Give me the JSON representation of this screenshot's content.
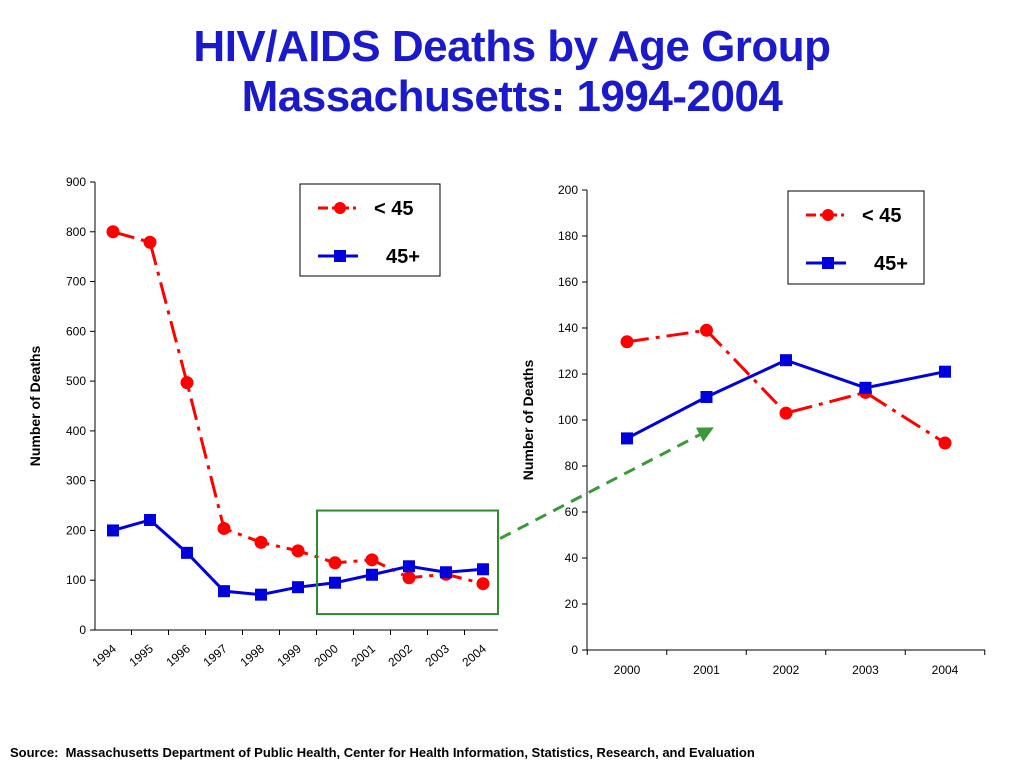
{
  "title": {
    "line1": "HIV/AIDS Deaths by Age Group",
    "line2": "Massachusetts: 1994-2004"
  },
  "source": "Source:  Massachusetts Department of Public Health, Center for Health Information, Statistics, Research, and Evaluation",
  "colors": {
    "under45": "#ff0000",
    "over45": "#0000dd",
    "title": "#1a1acc",
    "highlight_box": "#2e8b2e",
    "arrow": "#3a9a3a"
  },
  "chart_data": [
    {
      "type": "line",
      "title": "",
      "xlabel": "",
      "ylabel": "Number of Deaths",
      "x": [
        "1994",
        "1995",
        "1996",
        "1997",
        "1998",
        "1999",
        "2000",
        "2001",
        "2002",
        "2003",
        "2004"
      ],
      "ylim": [
        0,
        900
      ],
      "yticks": [
        0,
        100,
        200,
        300,
        400,
        500,
        600,
        700,
        800,
        900
      ],
      "legend_position": "top-center",
      "series": [
        {
          "name": "< 45",
          "style": "dash-dot",
          "marker": "circle",
          "values": [
            800,
            779,
            497,
            204,
            176,
            159,
            135,
            141,
            105,
            112,
            93
          ]
        },
        {
          "name": "45+",
          "style": "solid",
          "marker": "square",
          "values": [
            200,
            221,
            155,
            78,
            71,
            86,
            95,
            111,
            128,
            116,
            122
          ]
        }
      ],
      "highlight": {
        "from": "2000",
        "to": "2004"
      }
    },
    {
      "type": "line",
      "title": "",
      "xlabel": "",
      "ylabel": "Number of Deaths",
      "x": [
        "2000",
        "2001",
        "2002",
        "2003",
        "2004"
      ],
      "ylim": [
        0,
        200
      ],
      "yticks": [
        0,
        20,
        40,
        60,
        80,
        100,
        120,
        140,
        160,
        180,
        200
      ],
      "legend_position": "top-right",
      "series": [
        {
          "name": "< 45",
          "style": "dash-dot",
          "marker": "circle",
          "values": [
            134,
            139,
            103,
            112,
            90
          ]
        },
        {
          "name": "45+",
          "style": "solid",
          "marker": "square",
          "values": [
            92,
            110,
            126,
            114,
            121
          ]
        }
      ]
    }
  ]
}
